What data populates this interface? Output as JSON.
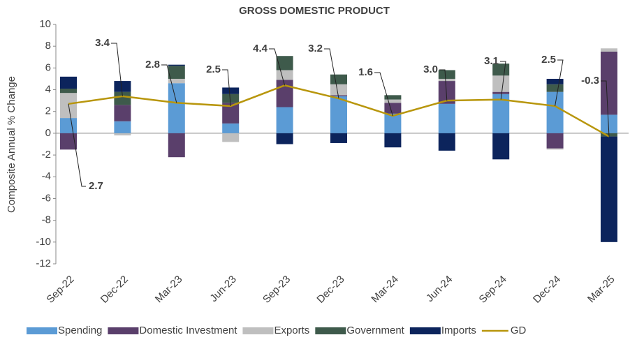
{
  "chart_data": {
    "type": "bar",
    "stacked": true,
    "title": "GROSS DOMESTIC PRODUCT",
    "y_label": "Composite Annual  % Change",
    "categories": [
      "Sep-22",
      "Dec-22",
      "Mar-23",
      "Jun-23",
      "Sep-23",
      "Dec-23",
      "Mar-24",
      "Jun-24",
      "Sep-24",
      "Dec-24",
      "Mar-25"
    ],
    "ylim": [
      -12,
      10
    ],
    "yticks": [
      -12,
      -10,
      -8,
      -6,
      -4,
      -2,
      0,
      2,
      4,
      6,
      8,
      10
    ],
    "series": [
      {
        "name": "Spending",
        "color": "#5b9bd5",
        "values": [
          1.4,
          1.1,
          4.6,
          0.9,
          2.4,
          3.4,
          1.8,
          2.7,
          3.6,
          3.8,
          1.7
        ]
      },
      {
        "name": "Domestic Investment",
        "color": "#5a3f6b",
        "values": [
          -1.5,
          1.5,
          -2.2,
          1.9,
          2.5,
          0.1,
          1.0,
          2.1,
          0.2,
          -1.4,
          5.8
        ]
      },
      {
        "name": "Exports",
        "color": "#bfbfbf",
        "values": [
          2.3,
          -0.2,
          0.4,
          -0.8,
          0.9,
          1.0,
          0.3,
          0.2,
          1.5,
          -0.1,
          0.3
        ]
      },
      {
        "name": "Government",
        "color": "#3e5a4b",
        "values": [
          0.4,
          1.2,
          1.2,
          0.8,
          1.3,
          0.9,
          0.4,
          0.8,
          1.1,
          0.7,
          -0.3
        ]
      },
      {
        "name": "Imports",
        "color": "#0c245c",
        "values": [
          1.1,
          1.0,
          0.1,
          0.6,
          -1.0,
          -0.9,
          -1.3,
          -1.6,
          -2.4,
          0.5,
          -9.7
        ]
      },
      {
        "name": "GD",
        "type": "line",
        "color": "#b8960c",
        "values": [
          2.7,
          3.4,
          2.8,
          2.5,
          4.4,
          3.2,
          1.6,
          3.0,
          3.1,
          2.5,
          -0.3
        ],
        "value_labels": [
          "2.7",
          "3.4",
          "2.8",
          "2.5",
          "4.4",
          "3.2",
          "1.6",
          "3.0",
          "3.1",
          "2.5",
          "-0.3"
        ]
      }
    ]
  }
}
